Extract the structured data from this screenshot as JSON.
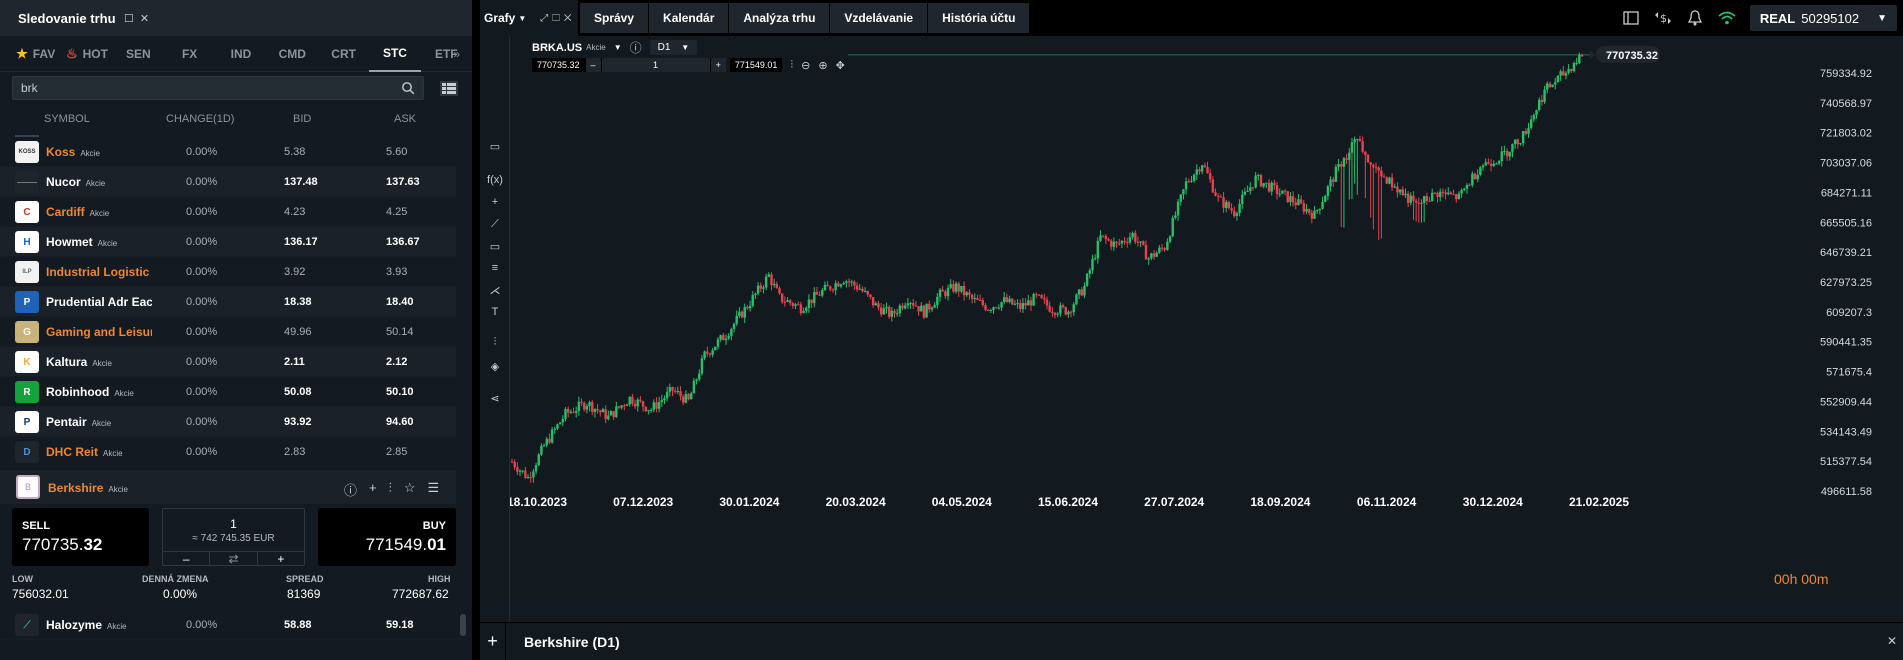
{
  "watchlist": {
    "title": "Sledovanie trhu",
    "tabs": [
      {
        "label": "FAV",
        "icon": "star-icon"
      },
      {
        "label": "HOT",
        "icon": "fire-icon"
      },
      {
        "label": "SEN"
      },
      {
        "label": "FX"
      },
      {
        "label": "IND"
      },
      {
        "label": "CMD"
      },
      {
        "label": "CRT"
      },
      {
        "label": "STC",
        "active": true
      },
      {
        "label": "ETF"
      }
    ],
    "search_value": "brk",
    "columns": {
      "symbol": "SYMBOL",
      "change": "CHANGE(1D)",
      "bid": "BID",
      "ask": "ASK"
    },
    "rows": [
      {
        "name": "Koss",
        "sub": "Akcie",
        "change": "0.00%",
        "bid": "5.38",
        "ask": "5.60",
        "orange": true,
        "bright": false,
        "logo_text": "KOSS",
        "logo_bg": "#f2f2f2",
        "logo_fg": "#333333"
      },
      {
        "name": "Nucor",
        "sub": "Akcie",
        "change": "0.00%",
        "bid": "137.48",
        "ask": "137.63",
        "orange": false,
        "bright": true,
        "logo_text": "——",
        "logo_bg": "#1e252c",
        "logo_fg": "#777777"
      },
      {
        "name": "Cardiff",
        "sub": "Akcie",
        "change": "0.00%",
        "bid": "4.23",
        "ask": "4.25",
        "orange": true,
        "bright": false,
        "logo_text": "C",
        "logo_bg": "#ffffff",
        "logo_fg": "#c0392b"
      },
      {
        "name": "Howmet",
        "sub": "Akcie",
        "change": "0.00%",
        "bid": "136.17",
        "ask": "136.67",
        "orange": false,
        "bright": true,
        "logo_text": "H",
        "logo_bg": "#ffffff",
        "logo_fg": "#1565c0"
      },
      {
        "name": "Industrial Logistic",
        "sub": "",
        "change": "0.00%",
        "bid": "3.92",
        "ask": "3.93",
        "orange": true,
        "bright": false,
        "logo_text": "ILP",
        "logo_bg": "#f2f2f2",
        "logo_fg": "#666666"
      },
      {
        "name": "Prudential Adr Eac",
        "sub": "",
        "change": "0.00%",
        "bid": "18.38",
        "ask": "18.40",
        "orange": false,
        "bright": true,
        "logo_text": "P",
        "logo_bg": "#1e63b8",
        "logo_fg": "#ffffff"
      },
      {
        "name": "Gaming and Leisur",
        "sub": "",
        "change": "0.00%",
        "bid": "49.96",
        "ask": "50.14",
        "orange": true,
        "bright": false,
        "logo_text": "G",
        "logo_bg": "#c9b37a",
        "logo_fg": "#ffffff"
      },
      {
        "name": "Kaltura",
        "sub": "Akcie",
        "change": "0.00%",
        "bid": "2.11",
        "ask": "2.12",
        "orange": false,
        "bright": true,
        "logo_text": "K",
        "logo_bg": "#ffffff",
        "logo_fg": "#f2a93b"
      },
      {
        "name": "Robinhood",
        "sub": "Akcie",
        "change": "0.00%",
        "bid": "50.08",
        "ask": "50.10",
        "orange": false,
        "bright": true,
        "logo_text": "R",
        "logo_bg": "#14a33b",
        "logo_fg": "#ffffff"
      },
      {
        "name": "Pentair",
        "sub": "Akcie",
        "change": "0.00%",
        "bid": "93.92",
        "ask": "94.60",
        "orange": false,
        "bright": true,
        "logo_text": "P",
        "logo_bg": "#ffffff",
        "logo_fg": "#0d3b66"
      },
      {
        "name": "DHC Reit",
        "sub": "Akcie",
        "change": "0.00%",
        "bid": "2.83",
        "ask": "2.85",
        "orange": true,
        "bright": false,
        "logo_text": "D",
        "logo_bg": "#1e252c",
        "logo_fg": "#4a90d9"
      }
    ],
    "selected": {
      "name": "Berkshire",
      "sub": "Akcie",
      "logo_text": "B"
    },
    "trade": {
      "sell_label": "SELL",
      "sell_price_main": "770735.",
      "sell_price_big": "32",
      "buy_label": "BUY",
      "buy_price_main": "771549.",
      "buy_price_big": "01",
      "qty": "1",
      "qty_eur": "≈ 742 745.35 EUR",
      "minus": "–",
      "swap": "⇄",
      "plus": "+"
    },
    "stats": [
      {
        "label": "LOW",
        "value": "756032.01"
      },
      {
        "label": "DENNÁ ZMENA",
        "value": "0.00%"
      },
      {
        "label": "SPREAD",
        "value": "81369"
      },
      {
        "label": "HIGH",
        "value": "772687.62"
      }
    ],
    "last_row": {
      "name": "Halozyme",
      "sub": "Akcie",
      "change": "0.00%",
      "bid": "58.88",
      "ask": "59.18"
    }
  },
  "topbar": {
    "grafy": "Grafy",
    "nav": [
      "Správy",
      "Kalendár",
      "Analýza trhu",
      "Vzdelávanie",
      "História účtu"
    ],
    "account_type": "REAL",
    "account_number": "50295102"
  },
  "chart": {
    "symbol": "BRKA.US",
    "symbol_sub": "Akcie",
    "timeframe": "D1",
    "order_sell": "770735.32",
    "order_qty": "1",
    "order_buy": "771549.01",
    "order_minus": "–",
    "order_plus": "+",
    "countdown": "00h 00m",
    "bottom_title": "Berkshire (D1)"
  },
  "chart_data": {
    "type": "candlestick",
    "title": "",
    "y_ticks": [
      759334.92,
      740568.97,
      721803.02,
      703037.06,
      684271.11,
      665505.16,
      646739.21,
      627973.25,
      609207.3,
      590441.35,
      571675.4,
      552909.44,
      534143.49,
      515377.54,
      496611.58
    ],
    "last_price": 770735.32,
    "x_ticks": [
      "18.10.2023",
      "07.12.2023",
      "30.01.2024",
      "20.03.2024",
      "04.05.2024",
      "15.06.2024",
      "27.07.2024",
      "18.09.2024",
      "06.11.2024",
      "30.12.2024",
      "21.02.2025"
    ],
    "close_path": [
      [
        0,
        515000
      ],
      [
        6,
        505000
      ],
      [
        12,
        525000
      ],
      [
        20,
        545000
      ],
      [
        28,
        552000
      ],
      [
        36,
        543000
      ],
      [
        44,
        555000
      ],
      [
        52,
        548000
      ],
      [
        60,
        560000
      ],
      [
        66,
        553000
      ],
      [
        72,
        582000
      ],
      [
        80,
        595000
      ],
      [
        88,
        613000
      ],
      [
        96,
        632000
      ],
      [
        100,
        618000
      ],
      [
        108,
        612000
      ],
      [
        116,
        622000
      ],
      [
        124,
        630000
      ],
      [
        130,
        624000
      ],
      [
        136,
        613000
      ],
      [
        142,
        607000
      ],
      [
        148,
        618000
      ],
      [
        154,
        609000
      ],
      [
        160,
        620000
      ],
      [
        166,
        625000
      ],
      [
        172,
        617000
      ],
      [
        178,
        612000
      ],
      [
        184,
        616000
      ],
      [
        190,
        612000
      ],
      [
        196,
        618000
      ],
      [
        202,
        611000
      ],
      [
        208,
        610000
      ],
      [
        214,
        625000
      ],
      [
        220,
        656000
      ],
      [
        226,
        651000
      ],
      [
        232,
        658000
      ],
      [
        238,
        643000
      ],
      [
        244,
        650000
      ],
      [
        252,
        690000
      ],
      [
        258,
        703000
      ],
      [
        264,
        680000
      ],
      [
        270,
        672000
      ],
      [
        278,
        693000
      ],
      [
        286,
        685000
      ],
      [
        294,
        677000
      ],
      [
        300,
        670000
      ],
      [
        308,
        697000
      ],
      [
        316,
        718000
      ],
      [
        322,
        700000
      ],
      [
        330,
        688000
      ],
      [
        338,
        676000
      ],
      [
        346,
        684000
      ],
      [
        354,
        681000
      ],
      [
        362,
        701000
      ],
      [
        370,
        707000
      ],
      [
        378,
        720000
      ],
      [
        386,
        748000
      ],
      [
        394,
        760000
      ],
      [
        400,
        771000
      ]
    ]
  }
}
